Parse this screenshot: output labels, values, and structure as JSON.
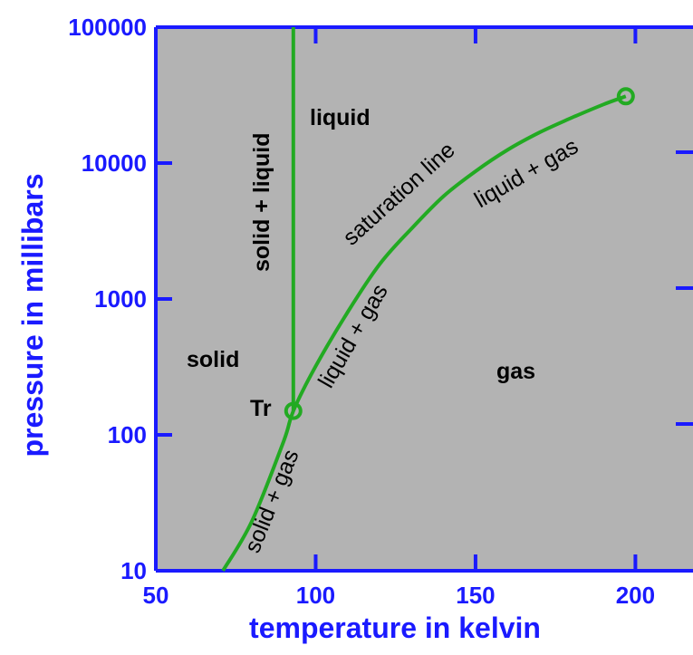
{
  "chart_data": {
    "type": "line",
    "xlabel": "temperature in kelvin",
    "ylabel": "pressure in millibars",
    "x_scale": "linear",
    "y_scale": "log",
    "xlim": [
      50,
      220
    ],
    "ylim": [
      10,
      100000
    ],
    "x_ticks": [
      "50",
      "100",
      "150",
      "200"
    ],
    "y_ticks": [
      "10",
      "100",
      "1000",
      "10000",
      "100000"
    ],
    "grid": false,
    "series": [
      {
        "name": "saturation line",
        "x": [
          71,
          80,
          90,
          93,
          100,
          110,
          120,
          130,
          140,
          150,
          160,
          170,
          180,
          190,
          197
        ],
        "y": [
          10,
          23,
          90,
          150,
          320,
          800,
          1800,
          3300,
          5700,
          8700,
          12500,
          16800,
          21500,
          27000,
          31000
        ]
      },
      {
        "name": "solid + liquid",
        "x": [
          93,
          93
        ],
        "y": [
          150,
          100000
        ]
      }
    ],
    "points": [
      {
        "label": "Tr",
        "x": 93,
        "y": 150
      },
      {
        "label": "",
        "x": 197,
        "y": 31000
      }
    ],
    "region_labels": [
      "liquid",
      "solid",
      "gas",
      "solid + liquid"
    ],
    "curve_labels": [
      "saturation line",
      "liquid + gas",
      "liquid + gas",
      "solid + gas"
    ],
    "colors": {
      "axis_text": "#1a1aff",
      "curve": "#22aa22",
      "plot_background": "#b3b3b3",
      "frame": "#1a1aff"
    }
  }
}
